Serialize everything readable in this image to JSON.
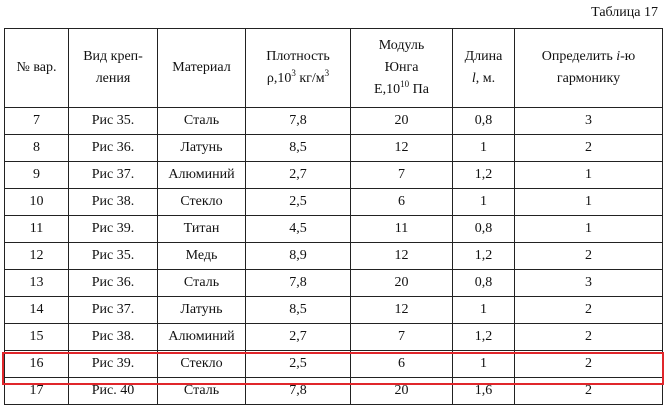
{
  "caption": "Таблица 17",
  "table": {
    "header": [
      [
        [
          {
            "text": "№ вар."
          }
        ]
      ],
      [
        [
          {
            "text": "Вид креп-"
          }
        ],
        [
          {
            "text": "ления"
          }
        ]
      ],
      [
        [
          {
            "text": "Материал"
          }
        ]
      ],
      [
        [
          {
            "text": "Плотность"
          }
        ],
        [
          {
            "text": "ρ,10"
          },
          {
            "text": "3",
            "style": "sup"
          },
          {
            "text": " кг/м"
          },
          {
            "text": "3",
            "style": "sup"
          }
        ]
      ],
      [
        [
          {
            "text": "Модуль"
          }
        ],
        [
          {
            "text": "Юнга"
          }
        ],
        [
          {
            "text": "E,10"
          },
          {
            "text": "10",
            "style": "sup"
          },
          {
            "text": " Па"
          }
        ]
      ],
      [
        [
          {
            "text": "Длина"
          }
        ],
        [
          {
            "text": "l",
            "style": "italic"
          },
          {
            "text": ", м."
          }
        ]
      ],
      [
        [
          {
            "text": "Определить "
          },
          {
            "text": "i",
            "style": "italic"
          },
          {
            "text": "-ю"
          }
        ],
        [
          {
            "text": "гармонику"
          }
        ]
      ]
    ],
    "rows": [
      [
        "7",
        "Рис 35.",
        "Сталь",
        "7,8",
        "20",
        "0,8",
        "3"
      ],
      [
        "8",
        "Рис 36.",
        "Латунь",
        "8,5",
        "12",
        "1",
        "2"
      ],
      [
        "9",
        "Рис 37.",
        "Алюминий",
        "2,7",
        "7",
        "1,2",
        "1"
      ],
      [
        "10",
        "Рис 38.",
        "Стекло",
        "2,5",
        "6",
        "1",
        "1"
      ],
      [
        "11",
        "Рис 39.",
        "Титан",
        "4,5",
        "11",
        "0,8",
        "1"
      ],
      [
        "12",
        "Рис 35.",
        "Медь",
        "8,9",
        "12",
        "1,2",
        "2"
      ],
      [
        "13",
        "Рис 36.",
        "Сталь",
        "7,8",
        "20",
        "0,8",
        "3"
      ],
      [
        "14",
        "Рис 37.",
        "Латунь",
        "8,5",
        "12",
        "1",
        "2"
      ],
      [
        "15",
        "Рис 38.",
        "Алюминий",
        "2,7",
        "7",
        "1,2",
        "2"
      ],
      [
        "16",
        "Рис 39.",
        "Стекло",
        "2,5",
        "6",
        "1",
        "2"
      ],
      [
        "17",
        "Рис. 40",
        "Сталь",
        "7,8",
        "20",
        "1,6",
        "2"
      ]
    ]
  }
}
